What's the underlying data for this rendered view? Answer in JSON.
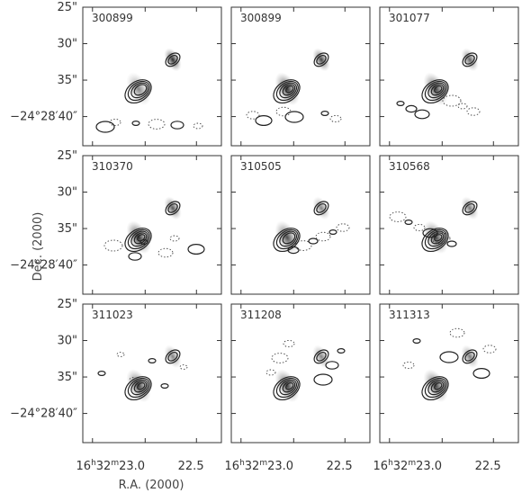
{
  "chart_data": {
    "type": "contour",
    "layout": "3x3 grid",
    "panels": [
      {
        "label": "300899",
        "blob_strength": 0.55,
        "second_source_strength": 0.95
      },
      {
        "label": "300899",
        "blob_strength": 0.9,
        "second_source_strength": 0.85
      },
      {
        "label": "301077",
        "blob_strength": 0.85,
        "second_source_strength": 0.7
      },
      {
        "label": "310370",
        "blob_strength": 0.95,
        "second_source_strength": 0.75
      },
      {
        "label": "310505",
        "blob_strength": 0.8,
        "second_source_strength": 0.55
      },
      {
        "label": "310568",
        "blob_strength": 0.85,
        "second_source_strength": 0.6
      },
      {
        "label": "311023",
        "blob_strength": 0.85,
        "second_source_strength": 0.55
      },
      {
        "label": "311208",
        "blob_strength": 0.85,
        "second_source_strength": 0.55
      },
      {
        "label": "311313",
        "blob_strength": 0.85,
        "second_source_strength": 0.6
      }
    ],
    "y_ticks": [
      {
        "value": 25,
        "label": "25\""
      },
      {
        "value": 30,
        "label": "30\""
      },
      {
        "value": 35,
        "label": "35\""
      },
      {
        "value": 40,
        "label": "40\""
      }
    ],
    "y_ref_label": "−24°28′40″",
    "x_ticks": [
      {
        "h": "16",
        "m": "32",
        "s": "23",
        "frac": "0",
        "label_main": "16",
        "label_m": "32",
        "label_s": "23.0"
      },
      {
        "s": "22",
        "frac": "5",
        "label_s": "22.5"
      }
    ],
    "xlabel": "R.A. (2000)",
    "ylabel": "Dec. (2000)",
    "grid": false
  }
}
